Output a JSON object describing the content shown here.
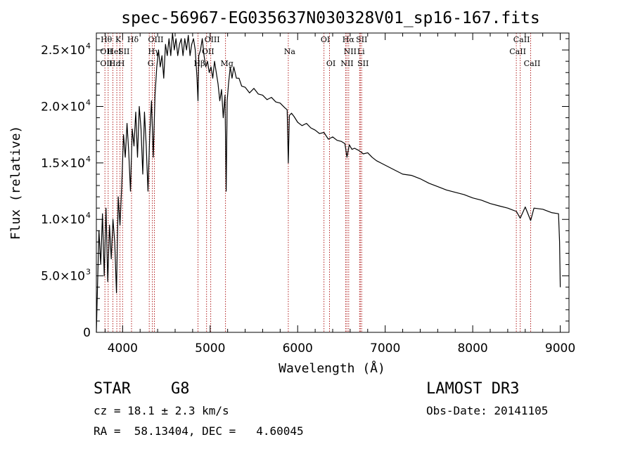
{
  "chart_data": {
    "type": "line",
    "title": "spec-56967-EG035637N030328V01_sp16-167.fits",
    "xlabel": "Wavelength (Å)",
    "ylabel": "Flux (relative)",
    "xlim": [
      3700,
      9100
    ],
    "ylim": [
      0,
      26500
    ],
    "x_ticks": [
      {
        "value": 4000,
        "label": "4000"
      },
      {
        "value": 5000,
        "label": "5000"
      },
      {
        "value": 6000,
        "label": "6000"
      },
      {
        "value": 7000,
        "label": "7000"
      },
      {
        "value": 8000,
        "label": "8000"
      },
      {
        "value": 9000,
        "label": "9000"
      }
    ],
    "y_ticks": [
      {
        "value": 0,
        "mant": "0",
        "exp": ""
      },
      {
        "value": 5000,
        "mant": "5.0×10",
        "exp": "3"
      },
      {
        "value": 10000,
        "mant": "1.0×10",
        "exp": "4"
      },
      {
        "value": 15000,
        "mant": "1.5×10",
        "exp": "4"
      },
      {
        "value": 20000,
        "mant": "2.0×10",
        "exp": "4"
      },
      {
        "value": 25000,
        "mant": "2.5×10",
        "exp": "4"
      }
    ],
    "spectrum": {
      "wavelength": [
        3700,
        3710,
        3730,
        3750,
        3770,
        3790,
        3810,
        3830,
        3850,
        3870,
        3890,
        3910,
        3930,
        3950,
        3970,
        3990,
        4010,
        4030,
        4050,
        4070,
        4090,
        4110,
        4130,
        4150,
        4170,
        4190,
        4210,
        4230,
        4250,
        4270,
        4290,
        4310,
        4330,
        4350,
        4370,
        4390,
        4410,
        4430,
        4450,
        4470,
        4490,
        4510,
        4530,
        4550,
        4570,
        4590,
        4610,
        4630,
        4650,
        4670,
        4690,
        4710,
        4730,
        4750,
        4770,
        4790,
        4810,
        4830,
        4850,
        4861,
        4870,
        4890,
        4910,
        4930,
        4950,
        4970,
        4990,
        5010,
        5030,
        5050,
        5070,
        5090,
        5110,
        5130,
        5150,
        5170,
        5183,
        5195,
        5210,
        5230,
        5250,
        5270,
        5300,
        5330,
        5360,
        5400,
        5450,
        5500,
        5550,
        5600,
        5650,
        5700,
        5750,
        5800,
        5850,
        5880,
        5893,
        5905,
        5930,
        5960,
        6000,
        6050,
        6100,
        6150,
        6200,
        6250,
        6300,
        6350,
        6400,
        6450,
        6500,
        6540,
        6563,
        6590,
        6620,
        6650,
        6700,
        6750,
        6800,
        6850,
        6900,
        6950,
        7000,
        7100,
        7200,
        7300,
        7400,
        7500,
        7600,
        7700,
        7800,
        7900,
        8000,
        8100,
        8200,
        8300,
        8400,
        8500,
        8542,
        8600,
        8662,
        8700,
        8800,
        8900,
        8980,
        8992,
        9000
      ],
      "flux": [
        0,
        3000,
        9000,
        6000,
        10500,
        5000,
        11000,
        4500,
        9500,
        6500,
        10000,
        8000,
        3500,
        12000,
        9500,
        13000,
        17500,
        15500,
        18500,
        16000,
        12500,
        18000,
        16500,
        19500,
        15500,
        20000,
        18000,
        14000,
        19500,
        16500,
        12500,
        17500,
        20500,
        15500,
        21000,
        23500,
        25000,
        23500,
        24500,
        22500,
        25500,
        24500,
        26000,
        24500,
        26500,
        25000,
        26000,
        24500,
        25500,
        26000,
        24500,
        26000,
        25000,
        26300,
        24500,
        25500,
        26000,
        25000,
        22500,
        20500,
        24500,
        25000,
        26000,
        24500,
        23500,
        24000,
        23000,
        23500,
        22500,
        24000,
        23000,
        22000,
        20500,
        21500,
        19000,
        21000,
        12500,
        20500,
        22000,
        23500,
        22500,
        23500,
        22500,
        22500,
        21800,
        21700,
        21200,
        21600,
        21100,
        21000,
        20600,
        20800,
        20400,
        20300,
        19900,
        19700,
        15000,
        19200,
        19400,
        19100,
        18600,
        18300,
        18500,
        18100,
        17900,
        17600,
        17700,
        17100,
        17300,
        17000,
        16900,
        16700,
        15500,
        16600,
        16200,
        16300,
        16100,
        15800,
        15900,
        15500,
        15200,
        15000,
        14800,
        14400,
        14000,
        13900,
        13600,
        13200,
        12900,
        12600,
        12400,
        12200,
        11900,
        11700,
        11400,
        11200,
        11000,
        10700,
        10100,
        11100,
        9900,
        11000,
        10900,
        10600,
        10500,
        8000,
        4000
      ]
    },
    "lines_upper": [
      {
        "w": 3798,
        "labels": [
          "Hθ",
          "OII",
          "OII"
        ]
      },
      {
        "w": 3835,
        "labels": [
          "",
          "",
          ""
        ]
      },
      {
        "w": 3889,
        "labels": [
          "",
          "HeI",
          "Hε"
        ]
      },
      {
        "w": 3934,
        "labels": [
          "K",
          "",
          ""
        ]
      },
      {
        "w": 3970,
        "labels": [
          "",
          "",
          "H"
        ]
      },
      {
        "w": 4000,
        "labels": [
          "",
          "SII",
          ""
        ]
      },
      {
        "w": 4102,
        "labels": [
          "Hδ",
          "",
          ""
        ]
      },
      {
        "w": 4304,
        "labels": [
          "",
          "",
          "G"
        ]
      },
      {
        "w": 4340,
        "labels": [
          "",
          "Hγ",
          ""
        ]
      },
      {
        "w": 4363,
        "labels": [
          "OIII",
          "",
          ""
        ]
      },
      {
        "w": 4861,
        "labels": [
          "",
          "",
          "Hβ"
        ]
      },
      {
        "w": 4959,
        "labels": [
          "",
          "OII",
          ""
        ]
      },
      {
        "w": 5007,
        "labels": [
          "OIII",
          "",
          ""
        ]
      },
      {
        "w": 5175,
        "labels": [
          "",
          "",
          "Mg"
        ]
      },
      {
        "w": 5893,
        "labels": [
          "",
          "Na",
          ""
        ]
      },
      {
        "w": 6300,
        "labels": [
          "OI",
          "",
          ""
        ]
      },
      {
        "w": 6364,
        "labels": [
          "",
          "",
          "OI"
        ]
      },
      {
        "w": 6548,
        "labels": [
          "",
          "",
          "NII"
        ]
      },
      {
        "w": 6563,
        "labels": [
          "Hα",
          "",
          ""
        ]
      },
      {
        "w": 6583,
        "labels": [
          "",
          "NII",
          ""
        ]
      },
      {
        "w": 6708,
        "labels": [
          "",
          "Li",
          ""
        ]
      },
      {
        "w": 6716,
        "labels": [
          "SII",
          "",
          ""
        ]
      },
      {
        "w": 6731,
        "labels": [
          "",
          "",
          "SII"
        ]
      },
      {
        "w": 8498,
        "labels": [
          "",
          "CaII",
          ""
        ]
      },
      {
        "w": 8542,
        "labels": [
          "CaII",
          "",
          ""
        ]
      },
      {
        "w": 8662,
        "labels": [
          "",
          "",
          "CaII"
        ]
      }
    ]
  },
  "info": {
    "object_class": "STAR",
    "subclass": "G8",
    "survey": "LAMOST DR3",
    "cz": "cz = 18.1 ± 2.3 km/s",
    "obs_date": "Obs-Date: 20141105",
    "coords": "RA =  58.13404, DEC =   4.60045"
  },
  "colors": {
    "line_marker": "#b22222",
    "spectrum": "#000000",
    "axes": "#000000"
  }
}
